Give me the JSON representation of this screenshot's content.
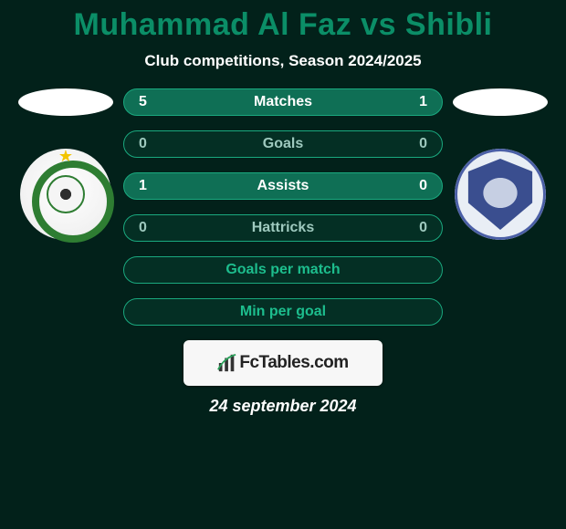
{
  "header": {
    "title": "Muhammad Al Faz vs Shibli",
    "title_color": "#0b8e67",
    "title_fontsize": 34,
    "subtitle": "Club competitions, Season 2024/2025",
    "subtitle_color": "#ffffff",
    "subtitle_fontsize": 17
  },
  "background_color": "#02211a",
  "left_player": {
    "photo_placeholder_color": "#ffffff",
    "club_badge_bg": "#f2f2f2",
    "club_accent": "#2e7d32"
  },
  "right_player": {
    "photo_placeholder_color": "#ffffff",
    "club_badge_bg": "#e9eef5",
    "club_accent": "#3a4e8f"
  },
  "stats": [
    {
      "label": "Matches",
      "left_value": "5",
      "right_value": "1",
      "pill_bg": "#0f6f55",
      "border_color": "#1aa97f",
      "text_color": "#ffffff"
    },
    {
      "label": "Goals",
      "left_value": "0",
      "right_value": "0",
      "pill_bg": "#042f24",
      "border_color": "#1aa97f",
      "text_color": "#9ec9be"
    },
    {
      "label": "Assists",
      "left_value": "1",
      "right_value": "0",
      "pill_bg": "#0f6f55",
      "border_color": "#1aa97f",
      "text_color": "#ffffff"
    },
    {
      "label": "Hattricks",
      "left_value": "0",
      "right_value": "0",
      "pill_bg": "#042f24",
      "border_color": "#1aa97f",
      "text_color": "#9ec9be"
    },
    {
      "label": "Goals per match",
      "left_value": "",
      "right_value": "",
      "pill_bg": "#042f24",
      "border_color": "#1aa97f",
      "text_color": "#1dbd8d"
    },
    {
      "label": "Min per goal",
      "left_value": "",
      "right_value": "",
      "pill_bg": "#042f24",
      "border_color": "#1aa97f",
      "text_color": "#1dbd8d"
    }
  ],
  "pill_style": {
    "height": 30,
    "border_radius": 15,
    "label_fontsize": 16,
    "value_fontsize": 16
  },
  "footer": {
    "brand_text": "FcTables.com",
    "brand_bg": "#f7f7f7",
    "brand_text_color": "#222222",
    "date": "24 september 2024",
    "date_color": "#ffffff"
  }
}
